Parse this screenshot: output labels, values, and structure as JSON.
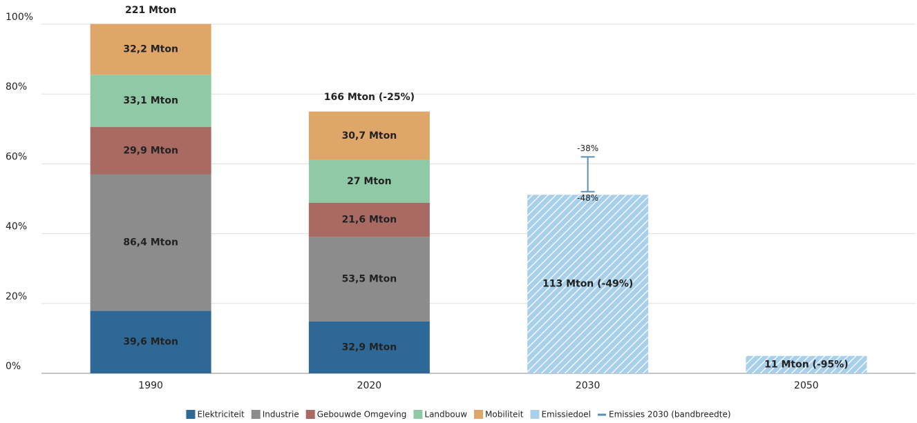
{
  "chart_data": {
    "type": "stacked_bar",
    "categories": [
      "1990",
      "2020",
      "2030",
      "2050"
    ],
    "series": [
      {
        "name": "Elektriciteit",
        "color": "#2e6896",
        "values": [
          39.6,
          32.9,
          null,
          null
        ],
        "value_labels": [
          "39,6 Mton",
          "32,9 Mton",
          null,
          null
        ]
      },
      {
        "name": "Industrie",
        "color": "#8c8c8c",
        "values": [
          86.4,
          53.5,
          null,
          null
        ],
        "value_labels": [
          "86,4 Mton",
          "53,5 Mton",
          null,
          null
        ]
      },
      {
        "name": "Gebouwde Omgeving",
        "color": "#a96a64",
        "values": [
          29.9,
          21.6,
          null,
          null
        ],
        "value_labels": [
          "29,9 Mton",
          "21,6 Mton",
          null,
          null
        ]
      },
      {
        "name": "Landbouw",
        "color": "#8fc9a6",
        "values": [
          33.1,
          27,
          null,
          null
        ],
        "value_labels": [
          "33,1 Mton",
          "27 Mton",
          null,
          null
        ]
      },
      {
        "name": "Mobiliteit",
        "color": "#dfa66a",
        "values": [
          32.2,
          30.7,
          null,
          null
        ],
        "value_labels": [
          "32,2 Mton",
          "30,7 Mton",
          null,
          null
        ]
      },
      {
        "name": "Emissiedoel",
        "color": "#a9d0ea",
        "hatch": true,
        "values": [
          null,
          null,
          113,
          11
        ],
        "value_labels": [
          null,
          null,
          "113 Mton (-49%)",
          "11 Mton (-95%)"
        ]
      }
    ],
    "totals": {
      "values": [
        221,
        166
      ],
      "value_labels": [
        "221 Mton",
        "166 Mton (-25%)"
      ]
    },
    "band": {
      "name": "Emissies 2030 (bandbreedte)",
      "color": "#5b8db5",
      "category": 2,
      "values": [
        137,
        115
      ],
      "value_labels": [
        "-38%",
        "-48%"
      ]
    },
    "ylim": [
      0,
      221
    ],
    "yticks": [
      {
        "value": 0,
        "label": "0%"
      },
      {
        "value": 44.2,
        "label": "20%"
      },
      {
        "value": 88.4,
        "label": "40%"
      },
      {
        "value": 132.6,
        "label": "60%"
      },
      {
        "value": 176.8,
        "label": "80%"
      },
      {
        "value": 221,
        "label": "100%"
      }
    ],
    "grid": true
  }
}
